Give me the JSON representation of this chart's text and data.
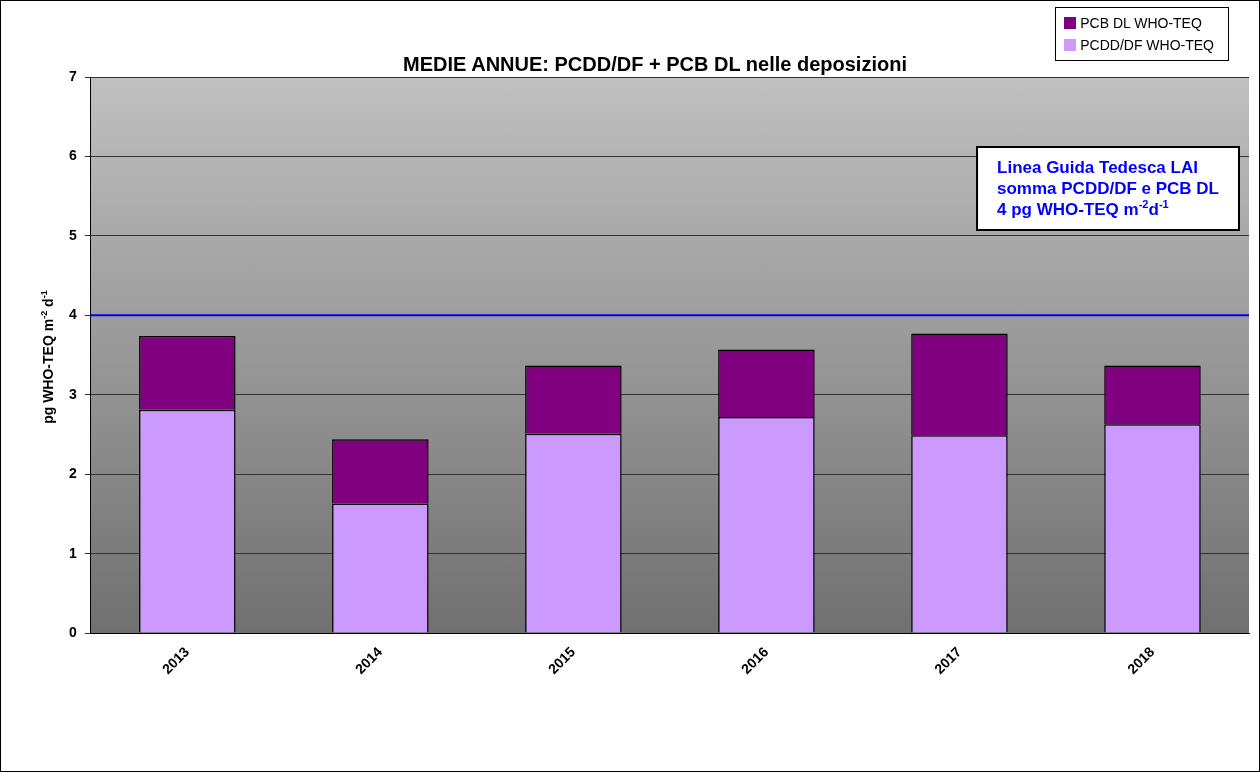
{
  "chart_data": {
    "type": "bar",
    "title": "MEDIE ANNUE: PCDD/DF + PCB DL nelle deposizioni",
    "ylabel": "pg WHO-TEQ m$^{-2}$ d$^{-1}$",
    "categories": [
      "2013",
      "2014",
      "2015",
      "2016",
      "2017",
      "2018"
    ],
    "stacked": true,
    "series": [
      {
        "name": "PCDD/DF WHO-TEQ",
        "color": "#cc99ff",
        "values": [
          2.81,
          1.63,
          2.51,
          2.72,
          2.49,
          2.63
        ]
      },
      {
        "name": "PCB DL WHO-TEQ",
        "color": "#800080",
        "values": [
          0.93,
          0.81,
          0.86,
          0.85,
          1.28,
          0.74
        ]
      }
    ],
    "ylim": [
      0,
      7
    ],
    "yticks": [
      0,
      1,
      2,
      3,
      4,
      5,
      6,
      7
    ],
    "grid": "y",
    "legend": "top right",
    "ref_lines": [
      {
        "axis": "y",
        "value": 4,
        "label": "Linea Guida Tedesca LAI\nsomma PCDD/DF e PCB DL\n4 pg WHO-TEQ m$^{-2}$d$^{-1}$",
        "color": "#0000ff"
      }
    ]
  }
}
